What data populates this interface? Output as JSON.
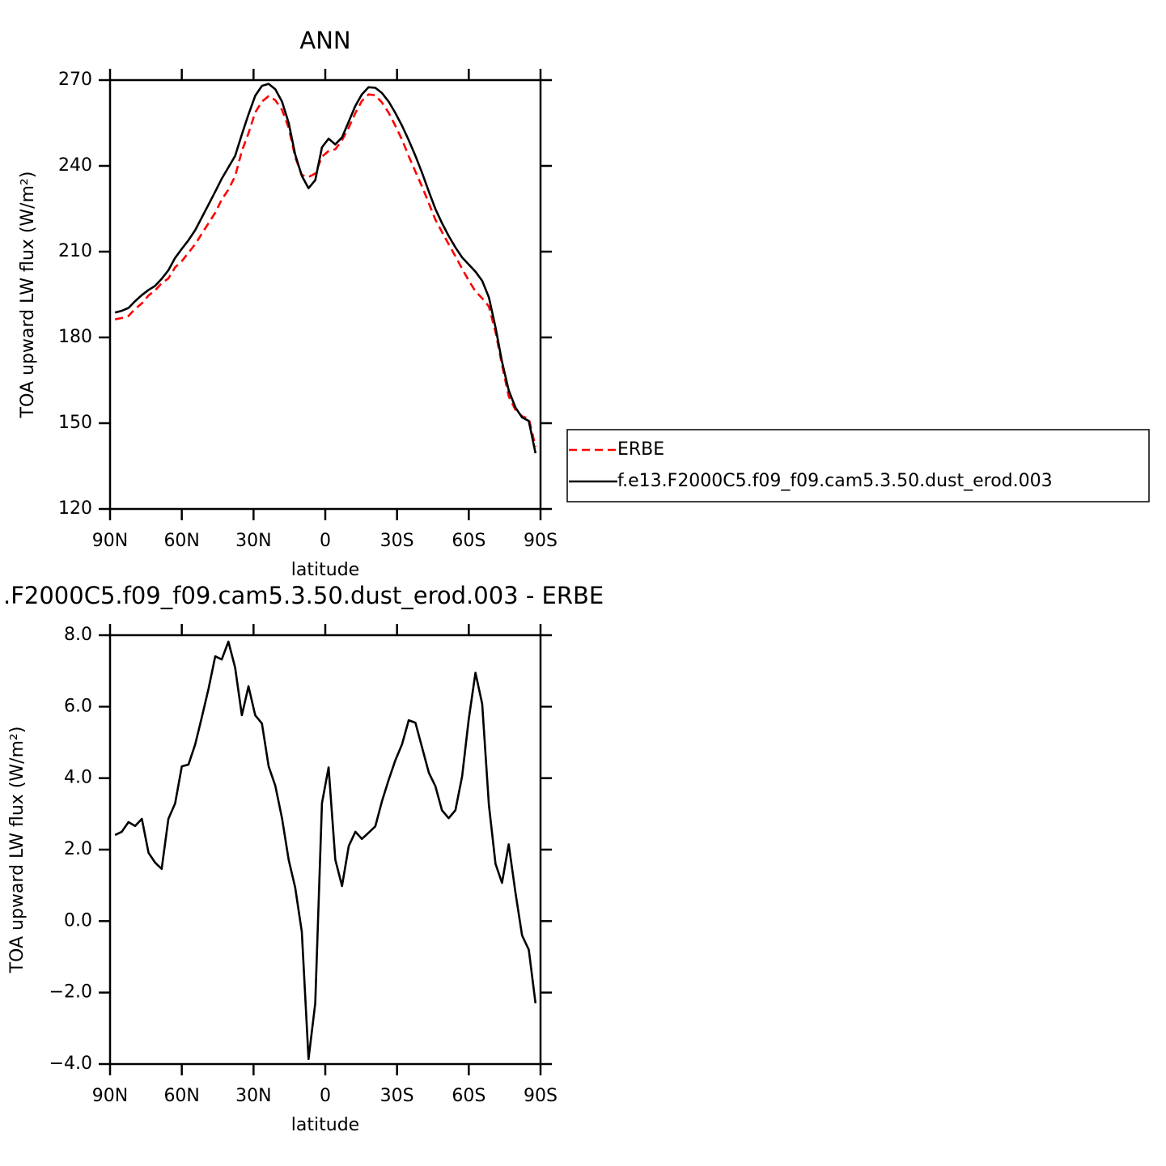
{
  "chart_data": [
    {
      "type": "line",
      "title": "ANN",
      "xlabel": "latitude",
      "ylabel": "TOA upward LW flux (W/m²)",
      "x": [
        87.9,
        85.1,
        82.3,
        79.5,
        76.7,
        73.9,
        71.2,
        68.4,
        65.6,
        62.8,
        60.0,
        57.2,
        54.4,
        51.6,
        48.8,
        46.0,
        43.3,
        40.5,
        37.7,
        34.9,
        32.1,
        29.3,
        26.5,
        23.7,
        20.9,
        18.1,
        15.3,
        12.6,
        9.8,
        7.0,
        4.2,
        1.4,
        -1.4,
        -4.2,
        -7.0,
        -9.8,
        -12.6,
        -15.3,
        -18.1,
        -20.9,
        -23.7,
        -26.5,
        -29.3,
        -32.1,
        -34.9,
        -37.7,
        -40.5,
        -43.3,
        -46.0,
        -48.8,
        -51.6,
        -54.4,
        -57.2,
        -60.0,
        -62.8,
        -65.6,
        -68.4,
        -71.2,
        -73.9,
        -76.7,
        -79.5,
        -82.3,
        -85.1,
        -87.9
      ],
      "series": [
        {
          "name": "ERBE",
          "color": "#ff0000",
          "linestyle": "dashed",
          "values": [
            186.3,
            186.8,
            187.5,
            190.0,
            191.9,
            194.7,
            196.4,
            199.0,
            200.6,
            204.5,
            206.7,
            209.6,
            212.6,
            216.3,
            220.0,
            223.6,
            228.2,
            231.7,
            236.4,
            245.2,
            251.4,
            258.7,
            262.5,
            264.4,
            263.0,
            259.6,
            253.3,
            243.1,
            236.8,
            236.1,
            237.3,
            243.2,
            245.2,
            245.8,
            249.0,
            253.4,
            258.5,
            262.7,
            265.0,
            264.7,
            262.2,
            258.6,
            254.0,
            249.1,
            243.4,
            238.0,
            232.7,
            226.9,
            221.2,
            216.9,
            212.6,
            208.4,
            204.0,
            199.9,
            196.1,
            193.7,
            190.8,
            181.9,
            170.4,
            159.4,
            154.7,
            152.4,
            151.6,
            141.8
          ]
        },
        {
          "name": "f.e13.F2000C5.f09_f09.cam5.3.50.dust_erod.003",
          "color": "#000000",
          "linestyle": "solid",
          "values": [
            188.7,
            189.3,
            190.3,
            192.7,
            194.8,
            196.6,
            198.0,
            200.5,
            203.5,
            207.8,
            211.0,
            214.0,
            217.5,
            222.0,
            226.5,
            231.0,
            235.5,
            239.5,
            243.5,
            251.0,
            258.0,
            264.5,
            268.0,
            268.7,
            266.8,
            262.5,
            255.0,
            244.0,
            236.5,
            232.2,
            235.0,
            246.5,
            249.5,
            247.5,
            250.0,
            255.5,
            261.0,
            265.0,
            267.5,
            267.3,
            265.5,
            262.5,
            258.5,
            254.0,
            249.0,
            243.5,
            237.5,
            231.0,
            225.0,
            220.0,
            215.5,
            211.5,
            208.0,
            205.5,
            203.0,
            199.8,
            194.0,
            183.5,
            171.5,
            161.5,
            155.5,
            152.0,
            150.8,
            139.5
          ]
        }
      ],
      "xlim": [
        90,
        -90
      ],
      "xticks": [
        {
          "value": 90,
          "label": "90N"
        },
        {
          "value": 60,
          "label": "60N"
        },
        {
          "value": 30,
          "label": "30N"
        },
        0,
        {
          "value": -30,
          "label": "30S"
        },
        {
          "value": -60,
          "label": "60S"
        },
        {
          "value": -90,
          "label": "90S"
        }
      ],
      "ylim": [
        120,
        270
      ],
      "yticks": [
        120,
        150,
        180,
        210,
        240,
        270
      ],
      "legend": "right"
    },
    {
      "type": "line",
      "title": ".F2000C5.f09_f09.cam5.3.50.dust_erod.003 - ERBE",
      "xlabel": "latitude",
      "ylabel": "TOA upward LW flux (W/m²)",
      "x": [
        87.9,
        85.1,
        82.3,
        79.5,
        76.7,
        73.9,
        71.2,
        68.4,
        65.6,
        62.8,
        60.0,
        57.2,
        54.4,
        51.6,
        48.8,
        46.0,
        43.3,
        40.5,
        37.7,
        34.9,
        32.1,
        29.3,
        26.5,
        23.7,
        20.9,
        18.1,
        15.3,
        12.6,
        9.8,
        7.0,
        4.2,
        1.4,
        -1.4,
        -4.2,
        -7.0,
        -9.8,
        -12.6,
        -15.3,
        -18.1,
        -20.9,
        -23.7,
        -26.5,
        -29.3,
        -32.1,
        -34.9,
        -37.7,
        -40.5,
        -43.3,
        -46.0,
        -48.8,
        -51.6,
        -54.4,
        -57.2,
        -60.0,
        -62.8,
        -65.6,
        -68.4,
        -71.2,
        -73.9,
        -76.7,
        -79.5,
        -82.3,
        -85.1,
        -87.9
      ],
      "color": "#000000",
      "values": [
        2.41,
        2.5,
        2.77,
        2.66,
        2.86,
        1.91,
        1.64,
        1.46,
        2.86,
        3.29,
        4.33,
        4.38,
        4.94,
        5.71,
        6.51,
        7.41,
        7.32,
        7.82,
        7.09,
        5.76,
        6.57,
        5.76,
        5.53,
        4.33,
        3.79,
        2.88,
        1.71,
        0.94,
        -0.3,
        -3.86,
        -2.3,
        3.3,
        4.3,
        1.72,
        0.98,
        2.1,
        2.5,
        2.3,
        2.47,
        2.65,
        3.35,
        3.95,
        4.5,
        4.95,
        5.62,
        5.55,
        4.85,
        4.15,
        3.78,
        3.1,
        2.88,
        3.1,
        4.05,
        5.65,
        6.95,
        6.08,
        3.25,
        1.6,
        1.07,
        2.15,
        0.8,
        -0.4,
        -0.8,
        -2.3
      ],
      "xlim": [
        90,
        -90
      ],
      "xticks": [
        {
          "value": 90,
          "label": "90N"
        },
        {
          "value": 60,
          "label": "60N"
        },
        {
          "value": 30,
          "label": "30N"
        },
        0,
        {
          "value": -30,
          "label": "30S"
        },
        {
          "value": -60,
          "label": "60S"
        },
        {
          "value": -90,
          "label": "90S"
        }
      ],
      "ylim": [
        -4,
        8
      ],
      "yticks": [
        {
          "value": -4,
          "label": "−4.0"
        },
        {
          "value": -2,
          "label": "−2.0"
        },
        {
          "value": 0,
          "label": "0.0"
        },
        {
          "value": 2,
          "label": "2.0"
        },
        {
          "value": 4,
          "label": "4.0"
        },
        {
          "value": 6,
          "label": "6.0"
        },
        {
          "value": 8,
          "label": "8.0"
        }
      ]
    }
  ]
}
